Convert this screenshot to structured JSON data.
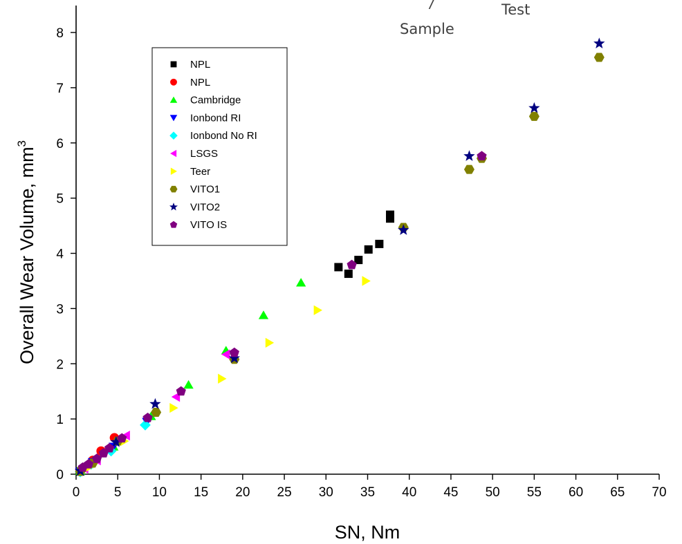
{
  "chart_data": {
    "type": "scatter",
    "xlabel": "SN, Nm",
    "ylabel": "Overall Wear Volume, mm",
    "ylabel_sup": "3",
    "xlim": [
      0,
      70
    ],
    "ylim": [
      0,
      8.5
    ],
    "x_ticks": [
      0,
      5,
      10,
      15,
      20,
      25,
      30,
      35,
      40,
      45,
      50,
      55,
      60,
      65,
      70
    ],
    "y_ticks": [
      0,
      1,
      2,
      3,
      4,
      5,
      6,
      7,
      8
    ],
    "grid": false,
    "legend_position": "top-left",
    "annotations": [
      "/",
      "Sample",
      "Test"
    ],
    "series": [
      {
        "name": "NPL",
        "marker": "square",
        "color": "#000000",
        "points": [
          [
            0.5,
            0.05
          ],
          [
            31.5,
            3.75
          ],
          [
            32.7,
            3.63
          ],
          [
            33.9,
            3.88
          ],
          [
            35.1,
            4.07
          ],
          [
            36.4,
            4.17
          ],
          [
            37.7,
            4.63
          ],
          [
            37.7,
            4.7
          ]
        ]
      },
      {
        "name": "NPL",
        "marker": "circle",
        "color": "#ff0000",
        "points": [
          [
            0.5,
            0.05
          ],
          [
            1.0,
            0.12
          ],
          [
            2.0,
            0.25
          ],
          [
            3.0,
            0.42
          ],
          [
            4.6,
            0.66
          ]
        ]
      },
      {
        "name": "Cambridge",
        "marker": "triangle-up",
        "color": "#00ff00",
        "points": [
          [
            0.5,
            0.06
          ],
          [
            1.5,
            0.18
          ],
          [
            4.5,
            0.5
          ],
          [
            9.0,
            1.05
          ],
          [
            13.5,
            1.62
          ],
          [
            18.0,
            2.24
          ],
          [
            22.5,
            2.88
          ],
          [
            27.0,
            3.47
          ]
        ]
      },
      {
        "name": "Ionbond RI",
        "marker": "triangle-down",
        "color": "#0000ff",
        "points": [
          [
            0.5,
            0.05
          ],
          [
            2.0,
            0.22
          ],
          [
            4.5,
            0.5
          ],
          [
            8.5,
            0.95
          ]
        ]
      },
      {
        "name": "Ionbond No RI",
        "marker": "diamond",
        "color": "#00ffff",
        "points": [
          [
            0.5,
            0.04
          ],
          [
            1.8,
            0.18
          ],
          [
            4.2,
            0.42
          ],
          [
            8.3,
            0.89
          ]
        ]
      },
      {
        "name": "LSGS",
        "marker": "triangle-left",
        "color": "#ff00ff",
        "points": [
          [
            1.0,
            0.1
          ],
          [
            2.5,
            0.25
          ],
          [
            6.0,
            0.7
          ],
          [
            12.0,
            1.4
          ],
          [
            18.0,
            2.17
          ]
        ]
      },
      {
        "name": "Teer",
        "marker": "triangle-right",
        "color": "#ffff00",
        "points": [
          [
            1.5,
            0.12
          ],
          [
            5.8,
            0.6
          ],
          [
            11.7,
            1.2
          ],
          [
            17.5,
            1.73
          ],
          [
            23.2,
            2.38
          ],
          [
            29.0,
            2.97
          ],
          [
            34.8,
            3.5
          ]
        ]
      },
      {
        "name": "VITO1",
        "marker": "hexagon",
        "color": "#808000",
        "points": [
          [
            0.5,
            0.05
          ],
          [
            2.0,
            0.2
          ],
          [
            5.0,
            0.6
          ],
          [
            9.6,
            1.12
          ],
          [
            19.0,
            2.08
          ],
          [
            39.3,
            4.47
          ],
          [
            47.2,
            5.52
          ],
          [
            48.7,
            5.72
          ],
          [
            55.0,
            6.48
          ],
          [
            62.8,
            7.55
          ]
        ]
      },
      {
        "name": "VITO2",
        "marker": "star",
        "color": "#000080",
        "points": [
          [
            0.5,
            0.06
          ],
          [
            4.8,
            0.58
          ],
          [
            9.5,
            1.27
          ],
          [
            19.0,
            2.1
          ],
          [
            39.3,
            4.42
          ],
          [
            47.2,
            5.76
          ],
          [
            55.0,
            6.63
          ],
          [
            62.8,
            7.8
          ]
        ]
      },
      {
        "name": "VITO IS",
        "marker": "pentagon",
        "color": "#800080",
        "points": [
          [
            0.8,
            0.12
          ],
          [
            1.5,
            0.18
          ],
          [
            2.5,
            0.28
          ],
          [
            3.3,
            0.38
          ],
          [
            4.0,
            0.47
          ],
          [
            5.5,
            0.65
          ],
          [
            8.6,
            1.02
          ],
          [
            12.6,
            1.5
          ],
          [
            19.0,
            2.2
          ],
          [
            33.1,
            3.79
          ],
          [
            48.7,
            5.76
          ]
        ]
      }
    ]
  }
}
